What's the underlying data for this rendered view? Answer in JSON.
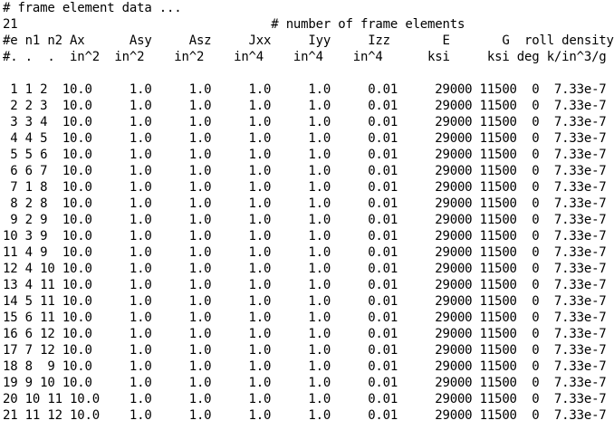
{
  "editor": {
    "lines": [
      "# frame element data ...",
      "21                                  # number of frame elements",
      "#e n1 n2 Ax      Asy     Asz     Jxx     Iyy     Izz       E       G  roll density",
      "#. .  .  in^2  in^2    in^2    in^4    in^4    in^4      ksi     ksi deg k/in^3/g",
      "",
      " 1 1 2  10.0     1.0     1.0     1.0     1.0     0.01     29000 11500  0  7.33e-7",
      " 2 2 3  10.0     1.0     1.0     1.0     1.0     0.01     29000 11500  0  7.33e-7",
      " 3 3 4  10.0     1.0     1.0     1.0     1.0     0.01     29000 11500  0  7.33e-7",
      " 4 4 5  10.0     1.0     1.0     1.0     1.0     0.01     29000 11500  0  7.33e-7",
      " 5 5 6  10.0     1.0     1.0     1.0     1.0     0.01     29000 11500  0  7.33e-7",
      " 6 6 7  10.0     1.0     1.0     1.0     1.0     0.01     29000 11500  0  7.33e-7",
      " 7 1 8  10.0     1.0     1.0     1.0     1.0     0.01     29000 11500  0  7.33e-7",
      " 8 2 8  10.0     1.0     1.0     1.0     1.0     0.01     29000 11500  0  7.33e-7",
      " 9 2 9  10.0     1.0     1.0     1.0     1.0     0.01     29000 11500  0  7.33e-7",
      "10 3 9  10.0     1.0     1.0     1.0     1.0     0.01     29000 11500  0  7.33e-7",
      "11 4 9  10.0     1.0     1.0     1.0     1.0     0.01     29000 11500  0  7.33e-7",
      "12 4 10 10.0     1.0     1.0     1.0     1.0     0.01     29000 11500  0  7.33e-7",
      "13 4 11 10.0     1.0     1.0     1.0     1.0     0.01     29000 11500  0  7.33e-7",
      "14 5 11 10.0     1.0     1.0     1.0     1.0     0.01     29000 11500  0  7.33e-7",
      "15 6 11 10.0     1.0     1.0     1.0     1.0     0.01     29000 11500  0  7.33e-7",
      "16 6 12 10.0     1.0     1.0     1.0     1.0     0.01     29000 11500  0  7.33e-7",
      "17 7 12 10.0     1.0     1.0     1.0     1.0     0.01     29000 11500  0  7.33e-7",
      "18 8  9 10.0     1.0     1.0     1.0     1.0     0.01     29000 11500  0  7.33e-7",
      "19 9 10 10.0     1.0     1.0     1.0     1.0     0.01     29000 11500  0  7.33e-7",
      "20 10 11 10.0    1.0     1.0     1.0     1.0     0.01     29000 11500  0  7.33e-7",
      "21 11 12 10.0    1.0     1.0     1.0     1.0     0.01     29000 11500  0  7.33e-7"
    ]
  }
}
